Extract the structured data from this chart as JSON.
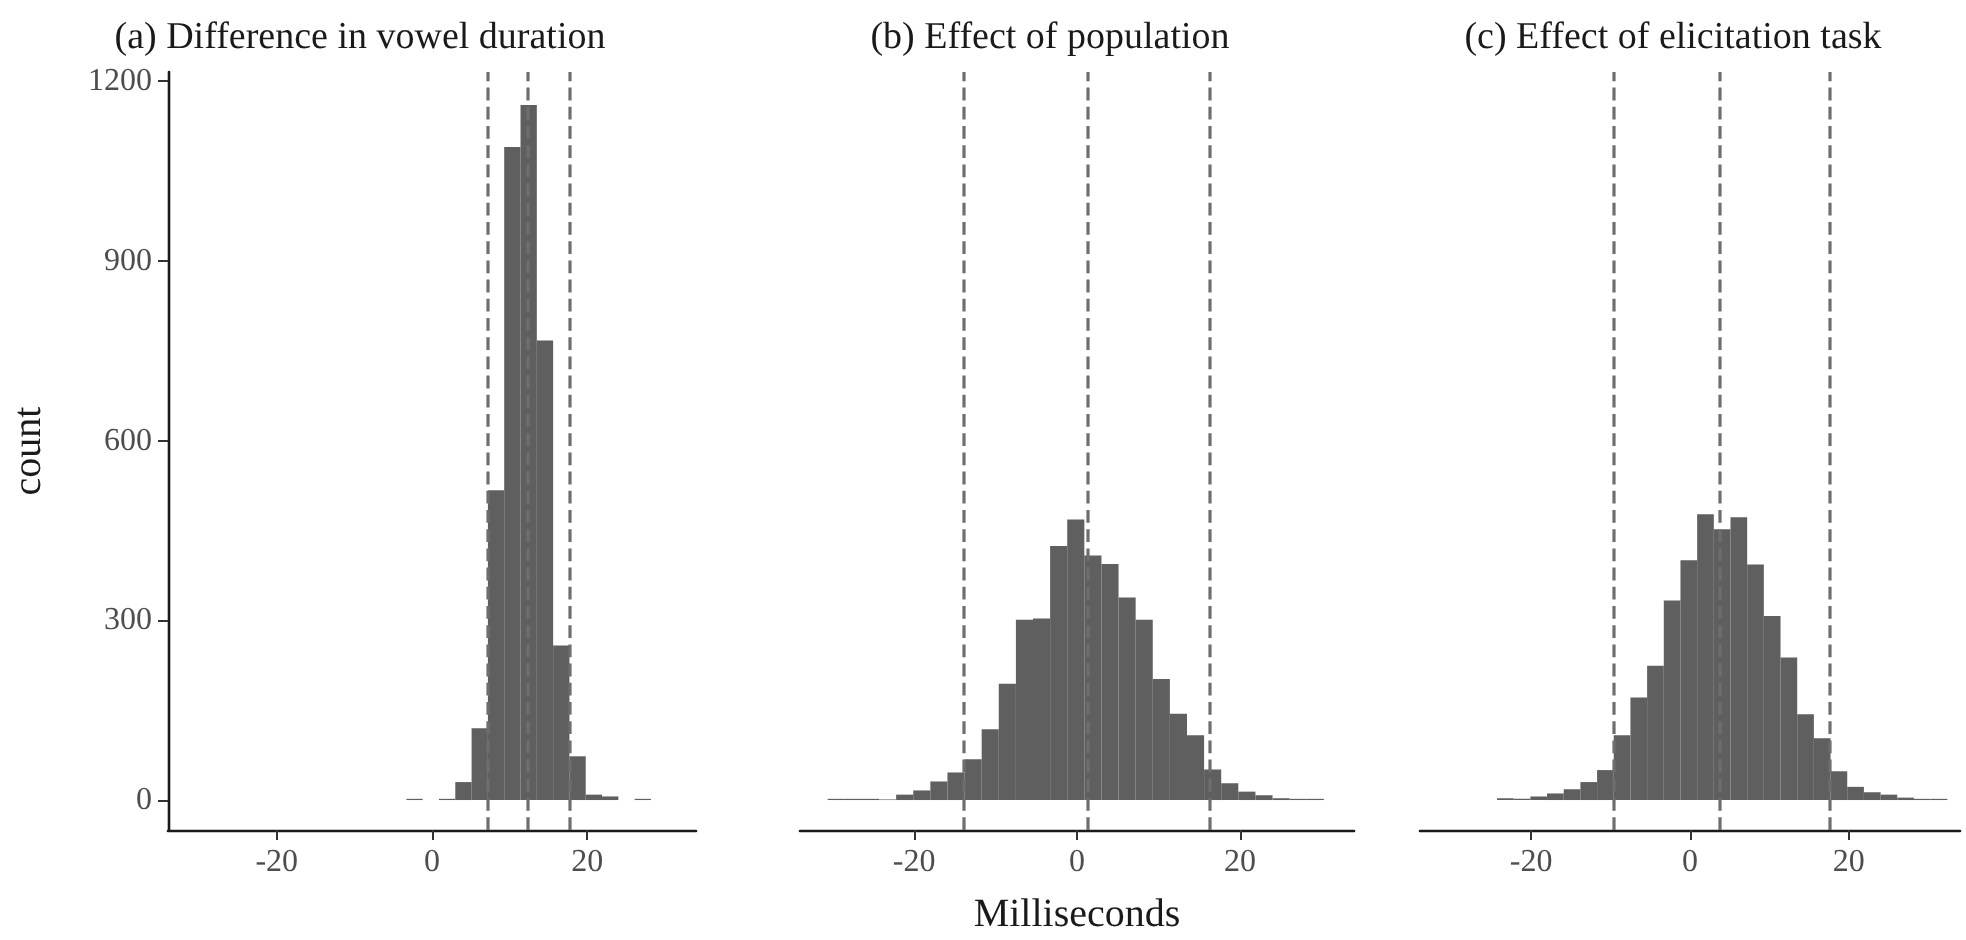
{
  "chart_data": [
    {
      "type": "histogram",
      "title": "(a) Difference in vowel duration",
      "ylabel": "count",
      "bins": [
        -30.6,
        -28.5,
        -26.4,
        -24.3,
        -22.2,
        -20.1,
        -18,
        -15.9,
        -13.8,
        -11.7,
        -9.6,
        -7.5,
        -5.4,
        -3.3,
        -1.2,
        0.9,
        3,
        5.1,
        7.2,
        9.3,
        11.4,
        13.5,
        15.6,
        17.7,
        19.8,
        21.9,
        24,
        26.1,
        28.2,
        30.3,
        32.4
      ],
      "values": [
        0,
        0,
        0,
        0,
        0,
        0,
        0,
        0,
        0,
        0,
        0,
        0,
        0,
        2,
        0,
        2,
        30,
        120,
        517,
        1090,
        1160,
        767,
        258,
        73,
        9,
        6,
        0,
        2,
        0,
        0
      ],
      "color": "#5f5f5f",
      "ref_lines": [
        {
          "axis": "x",
          "value": 7.1,
          "color": "#6e6e6e",
          "line_style": "dashed"
        },
        {
          "axis": "x",
          "value": 12.2,
          "color": "#6e6e6e",
          "line_style": "dashed"
        },
        {
          "axis": "x",
          "value": 17.8,
          "color": "#6e6e6e",
          "line_style": "dashed"
        }
      ],
      "xlim": [
        -34,
        34
      ],
      "xticks": [
        -20,
        0,
        20
      ],
      "ylim": [
        -50,
        1215
      ],
      "yticks": [
        0,
        300,
        600,
        900,
        1200
      ],
      "grid": false
    },
    {
      "type": "histogram",
      "title": "(b) Effect of population",
      "xlabel": "Milliseconds",
      "bins": [
        -30.6,
        -28.5,
        -26.4,
        -24.3,
        -22.2,
        -20.1,
        -18,
        -15.9,
        -13.8,
        -11.7,
        -9.6,
        -7.5,
        -5.4,
        -3.3,
        -1.2,
        0.9,
        3,
        5.1,
        7.2,
        9.3,
        11.4,
        13.5,
        15.6,
        17.7,
        19.8,
        21.9,
        24,
        26.1,
        28.2,
        30.3,
        32.4
      ],
      "values": [
        2,
        2,
        2,
        1,
        9,
        16,
        31,
        46,
        68,
        118,
        194,
        301,
        303,
        424,
        468,
        408,
        394,
        338,
        301,
        202,
        144,
        108,
        51,
        28,
        14,
        8,
        3,
        2,
        2,
        0
      ],
      "color": "#5f5f5f",
      "ref_lines": [
        {
          "axis": "x",
          "value": -13.9,
          "color": "#6e6e6e",
          "line_style": "dashed"
        },
        {
          "axis": "x",
          "value": 1.3,
          "color": "#6e6e6e",
          "line_style": "dashed"
        },
        {
          "axis": "x",
          "value": 16.2,
          "color": "#6e6e6e",
          "line_style": "dashed"
        }
      ],
      "xlim": [
        -34,
        34
      ],
      "xticks": [
        -20,
        0,
        20
      ],
      "ylim": [
        -50,
        1215
      ],
      "yticks": [
        0,
        300,
        600,
        900,
        1200
      ],
      "tick_labels": "x",
      "grid": false
    },
    {
      "type": "histogram",
      "title": "(c) Effect of elicitation task",
      "bins": [
        -30.6,
        -28.5,
        -26.4,
        -24.3,
        -22.2,
        -20.1,
        -18,
        -15.9,
        -13.8,
        -11.7,
        -9.6,
        -7.5,
        -5.4,
        -3.3,
        -1.2,
        0.9,
        3,
        5.1,
        7.2,
        9.3,
        11.4,
        13.5,
        15.6,
        17.7,
        19.8,
        21.9,
        24,
        26.1,
        28.2,
        30.3,
        32.4
      ],
      "values": [
        0,
        0,
        0,
        3,
        2,
        6,
        11,
        18,
        30,
        50,
        108,
        171,
        224,
        333,
        400,
        477,
        452,
        472,
        393,
        307,
        238,
        143,
        103,
        48,
        22,
        13,
        9,
        4,
        2,
        2
      ],
      "color": "#5f5f5f",
      "ref_lines": [
        {
          "axis": "x",
          "value": -9.6,
          "color": "#6e6e6e",
          "line_style": "dashed"
        },
        {
          "axis": "x",
          "value": 3.8,
          "color": "#6e6e6e",
          "line_style": "dashed"
        },
        {
          "axis": "x",
          "value": 17.5,
          "color": "#6e6e6e",
          "line_style": "dashed"
        }
      ],
      "xlim": [
        -34,
        34
      ],
      "xticks": [
        -20,
        0,
        20
      ],
      "ylim": [
        -50,
        1215
      ],
      "yticks": [
        0,
        300,
        600,
        900,
        1200
      ],
      "tick_labels": "x",
      "grid": false
    }
  ]
}
